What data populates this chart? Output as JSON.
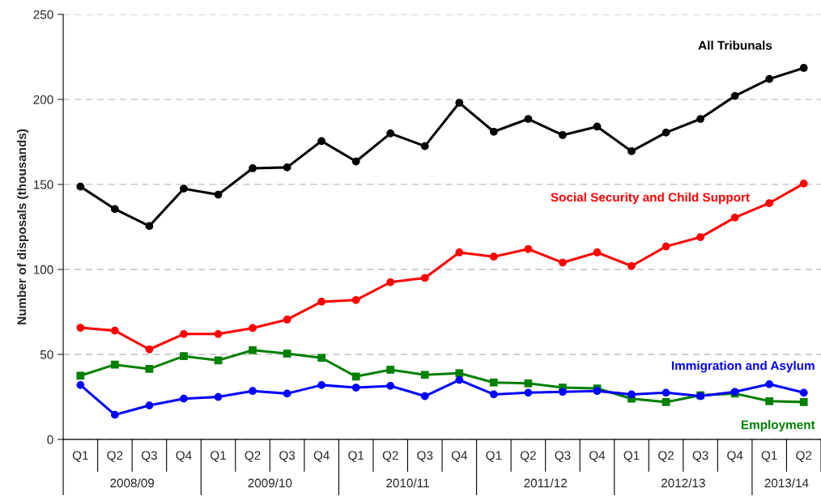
{
  "chart_data": {
    "type": "line",
    "ylabel": "Number of disposals (thousands)",
    "categories": [
      "Q1",
      "Q2",
      "Q3",
      "Q4",
      "Q1",
      "Q2",
      "Q3",
      "Q4",
      "Q1",
      "Q2",
      "Q3",
      "Q4",
      "Q1",
      "Q2",
      "Q3",
      "Q4",
      "Q1",
      "Q2",
      "Q3",
      "Q4",
      "Q1",
      "Q2"
    ],
    "annotations": [
      "2008/09",
      "2009/10",
      "2010/11",
      "2011/12",
      "2012/13",
      "2013/14"
    ],
    "ylim": [
      0,
      250
    ],
    "yticks": [
      0,
      50,
      100,
      150,
      200,
      250
    ],
    "grid": "y",
    "legend": false,
    "line_style": "solid",
    "series": [
      {
        "name": "All Tribunals",
        "color": "#000000",
        "marker": "circle",
        "values": [
          148.7,
          135.5,
          125.5,
          147.5,
          144,
          159.5,
          160,
          175.5,
          163.5,
          180,
          172.5,
          198,
          181,
          188.5,
          179,
          184,
          169.5,
          180.5,
          188.5,
          202,
          212,
          218.5
        ]
      },
      {
        "name": "Social Security and Child Support",
        "color": "#ff0000",
        "marker": "circle",
        "values": [
          65.7,
          64,
          53,
          62,
          62,
          65.5,
          70.5,
          81,
          82,
          92.5,
          95,
          110,
          107.5,
          112,
          104,
          110,
          102,
          113.5,
          119,
          130.5,
          139,
          150.5
        ]
      },
      {
        "name": "Employment",
        "color": "#008000",
        "marker": "square",
        "values": [
          37.5,
          44,
          41.5,
          49,
          46.5,
          52.5,
          50.5,
          48,
          37,
          41,
          38,
          39,
          33.5,
          33,
          30.5,
          30,
          24,
          22,
          26,
          27,
          22.5,
          22
        ]
      },
      {
        "name": "Immigration and Asylum",
        "color": "#0000ff",
        "marker": "circle",
        "values": [
          32,
          14.5,
          20,
          24,
          25,
          28.5,
          27,
          32,
          30.5,
          31.5,
          25.5,
          35,
          26.5,
          27.5,
          28,
          28.5,
          26.5,
          27.5,
          25.5,
          28,
          32.5,
          27.5
        ]
      }
    ]
  }
}
